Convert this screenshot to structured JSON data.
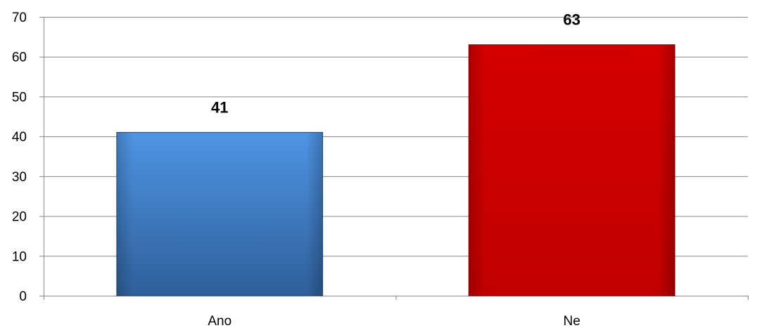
{
  "chart_data": {
    "type": "bar",
    "categories": [
      "Ano",
      "Ne"
    ],
    "values": [
      41,
      63
    ],
    "data_labels": [
      "41",
      "63"
    ],
    "title": "",
    "xlabel": "",
    "ylabel": "",
    "ylim": [
      0,
      70
    ],
    "yticks": [
      0,
      10,
      20,
      30,
      40,
      50,
      60,
      70
    ],
    "ytick_labels": [
      "0",
      "10",
      "20",
      "30",
      "40",
      "50",
      "60",
      "70"
    ],
    "grid": true,
    "legend": "none",
    "bar_colors": [
      {
        "top": "#4f94e3",
        "bottom": "#2f5f9a",
        "edge": "#2a4f7c"
      },
      {
        "top": "#d40000",
        "bottom": "#c00000",
        "edge": "#8a0000"
      }
    ],
    "grid_color": "#868686",
    "axis_color": "#868686"
  }
}
